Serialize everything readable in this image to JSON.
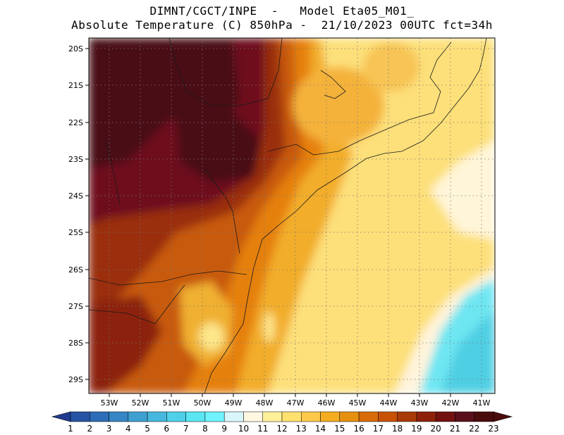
{
  "header": {
    "line1": "DIMNT/CGCT/INPE  -   Model Eta05_M01_",
    "line2": "Absolute Temperature (C) 850hPa -  21/10/2023 00UTC fct=34h"
  },
  "map": {
    "lat_labels": [
      "20S",
      "21S",
      "22S",
      "23S",
      "24S",
      "25S",
      "26S",
      "27S",
      "28S",
      "29S"
    ],
    "lon_labels": [
      "53W",
      "52W",
      "51W",
      "50W",
      "49W",
      "48W",
      "47W",
      "46W",
      "45W",
      "44W",
      "43W",
      "42W",
      "41W"
    ],
    "extent": {
      "lon": [
        -53.8,
        -40.6
      ],
      "lat": [
        -29.4,
        -19.8
      ]
    }
  },
  "colorbar": {
    "labels": [
      "1",
      "2",
      "3",
      "4",
      "5",
      "6",
      "7",
      "8",
      "9",
      "10",
      "11",
      "12",
      "13",
      "14",
      "15",
      "16",
      "17",
      "18",
      "19",
      "20",
      "21",
      "22",
      "23"
    ],
    "colors": [
      "#1f3a8f",
      "#2653a3",
      "#2d6cb6",
      "#3685c4",
      "#3f9fd1",
      "#47b8dd",
      "#4fd0e8",
      "#5ae5f1",
      "#6ff2fb",
      "#d8f6fb",
      "#fff7e2",
      "#fff09a",
      "#ffe170",
      "#fcc94a",
      "#f4ad20",
      "#e69010",
      "#d86c08",
      "#c75206",
      "#a83a08",
      "#8c2209",
      "#731111",
      "#5a0f1a",
      "#4a0b0b"
    ]
  }
}
